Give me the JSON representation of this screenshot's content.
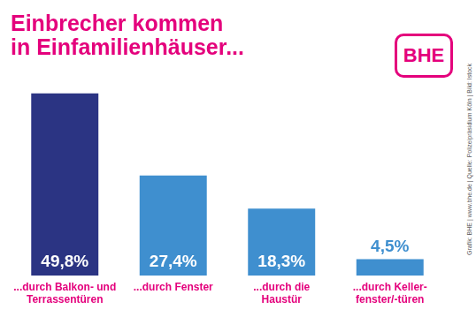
{
  "chart_data": {
    "type": "bar",
    "title": "Einbrecher kommen\nin Einfamilienhäuser...",
    "categories": [
      "...durch Balkon- und\nTerrassentüren",
      "...durch Fenster",
      "...durch die\nHaustür",
      "...durch Keller-\nfenster/-türen"
    ],
    "values": [
      49.8,
      27.4,
      18.3,
      4.5
    ],
    "value_labels": [
      "49,8%",
      "27,4%",
      "18,3%",
      "4,5%"
    ],
    "colors": [
      "#2b3483",
      "#3f8fcf",
      "#3f8fcf",
      "#3f8fcf"
    ],
    "ylim": [
      0,
      50
    ],
    "grid": false,
    "tick_labels": "x",
    "data_labels": true,
    "annotations": [
      "BHE",
      "Grafik: BHE | www.bhe.de | Quelle: Polizeipräsidium Köln | Bild: Istock"
    ]
  }
}
